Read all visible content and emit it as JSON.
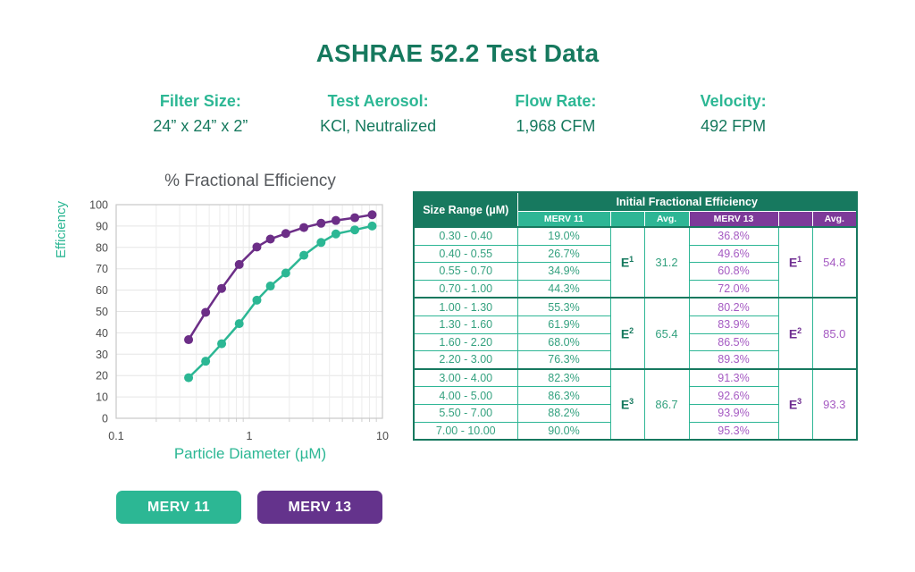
{
  "title": "ASHRAE 52.2 Test Data",
  "specs": [
    {
      "label": "Filter Size:",
      "value": "24” x 24” x 2”"
    },
    {
      "label": "Test Aerosol:",
      "value": "KCl, Neutralized"
    },
    {
      "label": "Flow Rate:",
      "value": "1,968 CFM"
    },
    {
      "label": "Velocity:",
      "value": "492 FPM"
    }
  ],
  "colors": {
    "dark_green": "#17795f",
    "teal": "#2cb794",
    "purple_header": "#7d3a99",
    "purple_button": "#64338c",
    "green_text": "#34a17f",
    "purple_text": "#a55ac2"
  },
  "chart_data": {
    "type": "line",
    "title": "% Fractional Efficiency",
    "xlabel": "Particle Diameter (µM)",
    "ylabel": "Efficiency",
    "x_scale": "log",
    "xlim": [
      0.1,
      10
    ],
    "ylim": [
      0,
      100
    ],
    "x_tick_labels": [
      "0.1",
      "1",
      "10"
    ],
    "x_tick_values": [
      0.1,
      1,
      10
    ],
    "y_ticks": [
      0,
      10,
      20,
      30,
      40,
      50,
      60,
      70,
      80,
      90,
      100
    ],
    "grid": true,
    "x": [
      0.35,
      0.47,
      0.62,
      0.84,
      1.14,
      1.44,
      1.88,
      2.57,
      3.46,
      4.47,
      6.2,
      8.37
    ],
    "series": [
      {
        "name": "MERV 11",
        "color": "#2cb794",
        "values": [
          19.0,
          26.7,
          34.9,
          44.3,
          55.3,
          61.9,
          68.0,
          76.3,
          82.3,
          86.3,
          88.2,
          90.0
        ]
      },
      {
        "name": "MERV 13",
        "color": "#6c2e87",
        "values": [
          36.8,
          49.6,
          60.8,
          72.0,
          80.2,
          83.9,
          86.5,
          89.3,
          91.3,
          92.6,
          93.9,
          95.3
        ]
      }
    ],
    "legend_position": "bottom-left-buttons"
  },
  "table": {
    "col1_header": "Size Range (µM)",
    "span_header": "Initial Fractional Efficiency",
    "sub_headers": [
      "MERV 11",
      "",
      "Avg.",
      "MERV 13",
      "",
      "Avg."
    ],
    "groups": [
      {
        "e_label": "E",
        "e_sup": "1",
        "merv11_avg": "31.2",
        "merv13_avg": "54.8",
        "rows": [
          {
            "range": "0.30 - 0.40",
            "merv11": "19.0%",
            "merv13": "36.8%"
          },
          {
            "range": "0.40 - 0.55",
            "merv11": "26.7%",
            "merv13": "49.6%"
          },
          {
            "range": "0.55 - 0.70",
            "merv11": "34.9%",
            "merv13": "60.8%"
          },
          {
            "range": "0.70 - 1.00",
            "merv11": "44.3%",
            "merv13": "72.0%"
          }
        ]
      },
      {
        "e_label": "E",
        "e_sup": "2",
        "merv11_avg": "65.4",
        "merv13_avg": "85.0",
        "rows": [
          {
            "range": "1.00 - 1.30",
            "merv11": "55.3%",
            "merv13": "80.2%"
          },
          {
            "range": "1.30 - 1.60",
            "merv11": "61.9%",
            "merv13": "83.9%"
          },
          {
            "range": "1.60 - 2.20",
            "merv11": "68.0%",
            "merv13": "86.5%"
          },
          {
            "range": "2.20 - 3.00",
            "merv11": "76.3%",
            "merv13": "89.3%"
          }
        ]
      },
      {
        "e_label": "E",
        "e_sup": "3",
        "merv11_avg": "86.7",
        "merv13_avg": "93.3",
        "rows": [
          {
            "range": "3.00 - 4.00",
            "merv11": "82.3%",
            "merv13": "91.3%"
          },
          {
            "range": "4.00 - 5.00",
            "merv11": "86.3%",
            "merv13": "92.6%"
          },
          {
            "range": "5.50 - 7.00",
            "merv11": "88.2%",
            "merv13": "93.9%"
          },
          {
            "range": "7.00 - 10.00",
            "merv11": "90.0%",
            "merv13": "95.3%"
          }
        ]
      }
    ]
  },
  "legend_buttons": [
    {
      "label": "MERV 11"
    },
    {
      "label": "MERV 13"
    }
  ]
}
